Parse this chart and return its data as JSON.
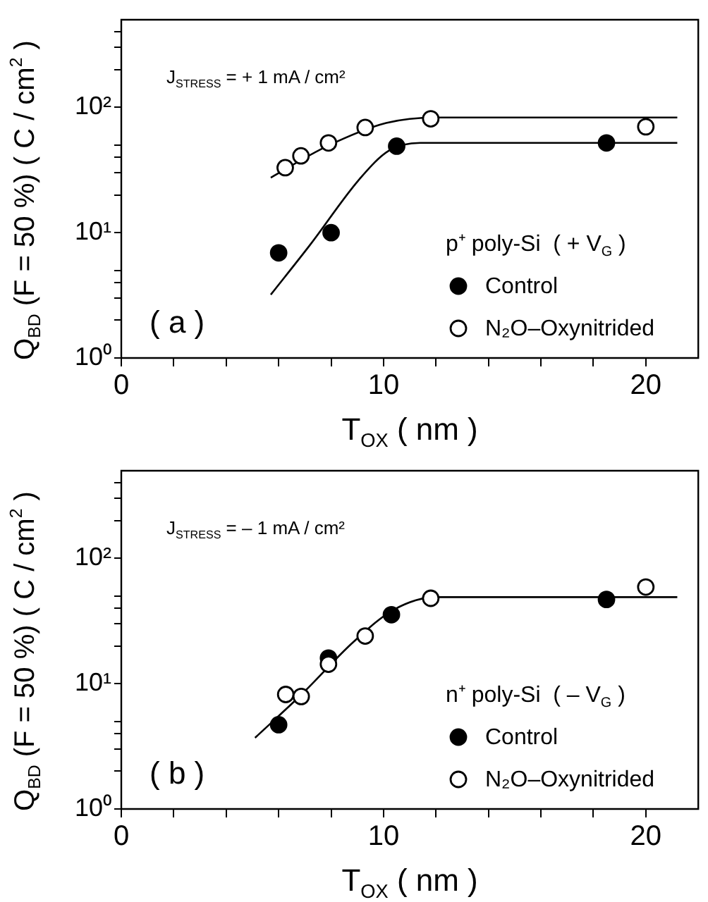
{
  "chart_data": [
    {
      "type": "scatter",
      "xlabel": "T$_{OX}$ ( nm )",
      "ylabel": "Q$_{BD}$ (F = 50 %) ( C / cm$^{2}$ )",
      "legend_title": "p⁺ poly-Si  ( + V$_{G}$ )",
      "legend": "bottom right",
      "marker": "circle",
      "log": "y",
      "grid": false,
      "annotations": [
        "J$_{STRESS}$ = + 1 mA / cm²",
        "( a )"
      ],
      "xlim": [
        0,
        22
      ],
      "ylim": [
        1,
        500
      ],
      "xticks": [
        0,
        {
          "value": 2,
          "label": null
        },
        {
          "value": 4,
          "label": null
        },
        {
          "value": 6,
          "label": null
        },
        {
          "value": 8,
          "label": null
        },
        10,
        {
          "value": 12,
          "label": null
        },
        {
          "value": 14,
          "label": null
        },
        {
          "value": 16,
          "label": null
        },
        {
          "value": 18,
          "label": null
        },
        20
      ],
      "yticks": [
        {
          "value": 1,
          "label": "10⁰"
        },
        {
          "value": 2,
          "label": null
        },
        {
          "value": 3,
          "label": null
        },
        {
          "value": 4,
          "label": null
        },
        {
          "value": 5,
          "label": null
        },
        {
          "value": 10,
          "label": "10¹"
        },
        {
          "value": 20,
          "label": null
        },
        {
          "value": 30,
          "label": null
        },
        {
          "value": 40,
          "label": null
        },
        {
          "value": 50,
          "label": null
        },
        {
          "value": 100,
          "label": "10²"
        },
        {
          "value": 200,
          "label": null
        },
        {
          "value": 300,
          "label": null
        },
        {
          "value": 400,
          "label": null
        }
      ],
      "series": [
        {
          "name": "Control",
          "color": "#000000",
          "x": [
            6.0,
            8.0,
            10.5,
            18.5
          ],
          "values": [
            6.9,
            10,
            49,
            52
          ]
        },
        {
          "name": "N₂O–Oxynitrided",
          "color": "#000000",
          "x": [
            6.25,
            6.85,
            7.9,
            9.3,
            11.8,
            20
          ],
          "values": [
            33,
            41,
            52,
            69,
            81,
            70
          ]
        },
        {
          "type": "line",
          "marker": "none",
          "color": "#000000",
          "x": [
            5.7,
            7.85,
            10.1,
            12,
            21.2
          ],
          "values": [
            27.5,
            49,
            75,
            83,
            83
          ]
        },
        {
          "type": "line",
          "marker": "none",
          "color": "#000000",
          "x": [
            5.7,
            7.2,
            9.1,
            10.2,
            11.4,
            21.2
          ],
          "values": [
            3.2,
            8,
            27,
            45,
            52,
            52
          ]
        }
      ]
    },
    {
      "type": "scatter",
      "xlabel": "T$_{OX}$ ( nm )",
      "ylabel": "Q$_{BD}$ (F = 50 %) ( C / cm$^{2}$ )",
      "legend_title": "n⁺ poly-Si  ( – V$_{G}$ )",
      "legend": "bottom right",
      "marker": "circle",
      "log": "y",
      "grid": false,
      "annotations": [
        "J$_{STRESS}$ = – 1 mA / cm²",
        "( b )"
      ],
      "xlim": [
        0,
        22
      ],
      "ylim": [
        1,
        500
      ],
      "xticks": [
        0,
        {
          "value": 2,
          "label": null
        },
        {
          "value": 4,
          "label": null
        },
        {
          "value": 6,
          "label": null
        },
        {
          "value": 8,
          "label": null
        },
        10,
        {
          "value": 12,
          "label": null
        },
        {
          "value": 14,
          "label": null
        },
        {
          "value": 16,
          "label": null
        },
        {
          "value": 18,
          "label": null
        },
        20
      ],
      "yticks": [
        {
          "value": 1,
          "label": "10⁰"
        },
        {
          "value": 2,
          "label": null
        },
        {
          "value": 3,
          "label": null
        },
        {
          "value": 4,
          "label": null
        },
        {
          "value": 5,
          "label": null
        },
        {
          "value": 10,
          "label": "10¹"
        },
        {
          "value": 20,
          "label": null
        },
        {
          "value": 30,
          "label": null
        },
        {
          "value": 40,
          "label": null
        },
        {
          "value": 50,
          "label": null
        },
        {
          "value": 100,
          "label": "10²"
        },
        {
          "value": 200,
          "label": null
        },
        {
          "value": 300,
          "label": null
        },
        {
          "value": 400,
          "label": null
        }
      ],
      "series": [
        {
          "name": "Control",
          "color": "#000000",
          "x": [
            6.0,
            7.9,
            10.3,
            18.5
          ],
          "values": [
            4.7,
            16,
            35.5,
            47
          ]
        },
        {
          "name": "N₂O–Oxynitrided",
          "color": "#000000",
          "x": [
            6.27,
            6.86,
            7.9,
            9.3,
            11.8,
            20
          ],
          "values": [
            8.2,
            7.9,
            14.3,
            24,
            48,
            59
          ]
        },
        {
          "type": "line",
          "marker": "none",
          "color": "#000000",
          "x": [
            5.1,
            6.9,
            8.85,
            10.4,
            12,
            21.2
          ],
          "values": [
            3.7,
            8.3,
            21.5,
            39,
            49,
            49
          ]
        }
      ]
    }
  ]
}
